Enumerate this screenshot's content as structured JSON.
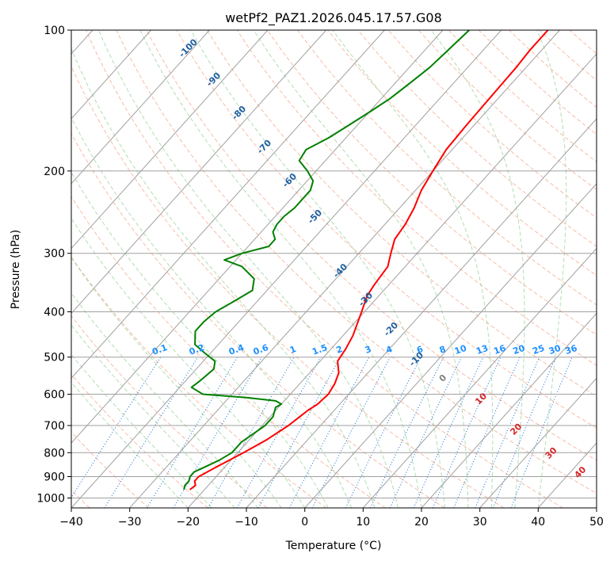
{
  "chart_data": {
    "type": "line",
    "chart_kind": "skew-t log-p sounding",
    "title": "wetPf2_PAZ1.2026.045.17.57.G08",
    "xlabel": "Temperature (°C)",
    "ylabel": "Pressure (hPa)",
    "xlim": [
      -40,
      50
    ],
    "ylim": [
      1050,
      100
    ],
    "y_scale": "log",
    "skew": "isotherms slant up to the right",
    "grid": true,
    "x_ticks": [
      -40,
      -30,
      -20,
      -10,
      0,
      10,
      20,
      30,
      40,
      50
    ],
    "x_tick_labels": [
      "−40",
      "−30",
      "−20",
      "−10",
      "0",
      "10",
      "20",
      "30",
      "40",
      "50"
    ],
    "y_ticks": [
      100,
      200,
      300,
      400,
      500,
      600,
      700,
      800,
      900,
      1000
    ],
    "y_tick_labels": [
      "100",
      "200",
      "300",
      "400",
      "500",
      "600",
      "700",
      "800",
      "900",
      "1000"
    ],
    "series": [
      {
        "key": "temperature",
        "color": "#ff0000",
        "points": [
          {
            "p": 960,
            "t": -22.5
          },
          {
            "p": 940,
            "t": -22.2
          },
          {
            "p": 920,
            "t": -23.0
          },
          {
            "p": 900,
            "t": -23.0
          },
          {
            "p": 860,
            "t": -21.5
          },
          {
            "p": 800,
            "t": -19.0
          },
          {
            "p": 750,
            "t": -17.0
          },
          {
            "p": 700,
            "t": -15.5
          },
          {
            "p": 650,
            "t": -14.5
          },
          {
            "p": 630,
            "t": -13.8
          },
          {
            "p": 600,
            "t": -13.5
          },
          {
            "p": 570,
            "t": -14.0
          },
          {
            "p": 540,
            "t": -15.0
          },
          {
            "p": 510,
            "t": -17.0
          },
          {
            "p": 480,
            "t": -17.5
          },
          {
            "p": 450,
            "t": -18.3
          },
          {
            "p": 400,
            "t": -20.5
          },
          {
            "p": 370,
            "t": -22.0
          },
          {
            "p": 350,
            "t": -22.5
          },
          {
            "p": 320,
            "t": -23.0
          },
          {
            "p": 300,
            "t": -24.5
          },
          {
            "p": 280,
            "t": -26.0
          },
          {
            "p": 260,
            "t": -26.5
          },
          {
            "p": 240,
            "t": -27.5
          },
          {
            "p": 220,
            "t": -29.0
          },
          {
            "p": 200,
            "t": -30.0
          },
          {
            "p": 180,
            "t": -31.0
          },
          {
            "p": 160,
            "t": -31.3
          },
          {
            "p": 140,
            "t": -31.5
          },
          {
            "p": 120,
            "t": -31.7
          },
          {
            "p": 110,
            "t": -32.0
          },
          {
            "p": 100,
            "t": -32.0
          }
        ]
      },
      {
        "key": "dewpoint",
        "color": "#008000",
        "points": [
          {
            "p": 960,
            "t": -23.5
          },
          {
            "p": 940,
            "t": -24.0
          },
          {
            "p": 920,
            "t": -24.0
          },
          {
            "p": 900,
            "t": -24.5
          },
          {
            "p": 880,
            "t": -24.5
          },
          {
            "p": 860,
            "t": -23.5
          },
          {
            "p": 830,
            "t": -22.0
          },
          {
            "p": 800,
            "t": -21.0
          },
          {
            "p": 760,
            "t": -21.0
          },
          {
            "p": 720,
            "t": -20.0
          },
          {
            "p": 700,
            "t": -19.5
          },
          {
            "p": 670,
            "t": -19.5
          },
          {
            "p": 640,
            "t": -20.5
          },
          {
            "p": 630,
            "t": -20.0
          },
          {
            "p": 620,
            "t": -21.5
          },
          {
            "p": 610,
            "t": -27.0
          },
          {
            "p": 600,
            "t": -35.0
          },
          {
            "p": 580,
            "t": -38.0
          },
          {
            "p": 560,
            "t": -37.5
          },
          {
            "p": 530,
            "t": -37.0
          },
          {
            "p": 510,
            "t": -38.0
          },
          {
            "p": 490,
            "t": -41.0
          },
          {
            "p": 470,
            "t": -44.0
          },
          {
            "p": 440,
            "t": -46.0
          },
          {
            "p": 420,
            "t": -46.0
          },
          {
            "p": 400,
            "t": -45.5
          },
          {
            "p": 380,
            "t": -44.0
          },
          {
            "p": 360,
            "t": -42.5
          },
          {
            "p": 340,
            "t": -44.0
          },
          {
            "p": 320,
            "t": -48.0
          },
          {
            "p": 310,
            "t": -52.0
          },
          {
            "p": 300,
            "t": -50.0
          },
          {
            "p": 290,
            "t": -46.5
          },
          {
            "p": 280,
            "t": -46.5
          },
          {
            "p": 270,
            "t": -48.0
          },
          {
            "p": 260,
            "t": -48.5
          },
          {
            "p": 250,
            "t": -48.5
          },
          {
            "p": 240,
            "t": -48.0
          },
          {
            "p": 230,
            "t": -48.0
          },
          {
            "p": 220,
            "t": -48.0
          },
          {
            "p": 210,
            "t": -49.0
          },
          {
            "p": 200,
            "t": -51.5
          },
          {
            "p": 190,
            "t": -54.5
          },
          {
            "p": 180,
            "t": -55.0
          },
          {
            "p": 170,
            "t": -53.0
          },
          {
            "p": 160,
            "t": -51.5
          },
          {
            "p": 150,
            "t": -50.0
          },
          {
            "p": 140,
            "t": -48.5
          },
          {
            "p": 130,
            "t": -47.5
          },
          {
            "p": 120,
            "t": -46.5
          },
          {
            "p": 110,
            "t": -46.0
          },
          {
            "p": 100,
            "t": -45.5
          }
        ]
      }
    ],
    "background_lines": {
      "isotherm_color": "#a0a0a0",
      "isobar_color": "#a0a0a0",
      "dry_adiabat_color": "#f5a68a",
      "moist_adiabat_color": "#9fd49f",
      "mixing_ratio_color": "#1f77d4",
      "ice_line_color": "#c8b08c"
    },
    "adiabat_label_color": "#1f5f9f",
    "adiabat_labels": [
      "-100",
      "-90",
      "-80",
      "-70",
      "-60",
      "-50",
      "-40",
      "-30",
      "-20",
      "-10"
    ],
    "mixing_ratio_label_color": "#1e90ff",
    "mixing_ratio_labels": [
      "0.1",
      "0.2",
      "0.4",
      "0.6",
      "1",
      "1.5",
      "2",
      "3",
      "4",
      "6",
      "8",
      "10",
      "13",
      "16",
      "20",
      "25",
      "30",
      "36"
    ],
    "extra_label_color_zero": "#808080",
    "extra_label_color_red": "#d62728",
    "extra_labels": [
      "0",
      "10",
      "20",
      "30",
      "40"
    ]
  }
}
